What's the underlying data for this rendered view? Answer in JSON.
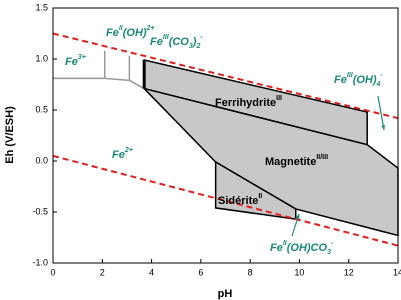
{
  "chart_data": {
    "type": "pourbaix",
    "xlabel": "pH",
    "ylabel": "Eh (V/ESH)",
    "xlim": [
      0,
      14
    ],
    "ylim": [
      -1.0,
      1.5
    ],
    "xticks": [
      0,
      2,
      4,
      6,
      8,
      10,
      12,
      14
    ],
    "yticks": [
      {
        "value": -1.0,
        "label": "-1.0"
      },
      {
        "value": -0.5,
        "label": "-0.5"
      },
      {
        "value": 0,
        "label": "0.0"
      },
      {
        "value": 0.5,
        "label": "0.5"
      },
      {
        "value": 1.0,
        "label": "1.0"
      },
      {
        "value": 1.5,
        "label": "1.5"
      }
    ],
    "region_color": "#c8c8c8",
    "regions": [
      {
        "x": [
          3.7,
          12.75,
          12.75,
          3.7
        ],
        "y": [
          0.99,
          0.48,
          0.16,
          0.71
        ]
      },
      {
        "x": [
          3.7,
          12.75,
          14,
          14,
          9.85,
          6.6
        ],
        "y": [
          0.71,
          0.16,
          -0.07,
          -0.73,
          -0.47,
          -0.01
        ]
      },
      {
        "x": [
          6.6,
          9.85,
          9.85,
          6.6
        ],
        "y": [
          -0.01,
          -0.47,
          -0.57,
          -0.46
        ]
      }
    ],
    "series": [
      {
        "x": [
          0,
          14
        ],
        "y": [
          1.25,
          0.42
        ],
        "color": "#e0201c",
        "dash": true
      },
      {
        "x": [
          0,
          14
        ],
        "y": [
          0.05,
          -0.83
        ],
        "color": "#e0201c",
        "dash": true
      },
      {
        "x": [
          0,
          2.1,
          3.1,
          3.7
        ],
        "y": [
          0.81,
          0.81,
          0.79,
          0.71
        ],
        "color": "#999999"
      },
      {
        "x": [
          2.1,
          2.1
        ],
        "y": [
          0.81,
          1.08
        ],
        "color": "#999999"
      },
      {
        "x": [
          3.1,
          3.1
        ],
        "y": [
          0.79,
          1.03
        ],
        "color": "#999999"
      },
      {
        "x": [
          3.7,
          3.7
        ],
        "y": [
          0.99,
          0.71
        ],
        "color": "#000000",
        "width": 3
      }
    ],
    "annotations": [
      {
        "kind": "ion",
        "parts": [
          {
            "text": "Fe"
          },
          {
            "text": "3+",
            "pos": "sup"
          }
        ]
      },
      {
        "kind": "ion",
        "parts": [
          {
            "text": "Fe"
          },
          {
            "text": "II",
            "pos": "sup"
          },
          {
            "text": "(OH)"
          },
          {
            "text": "2+",
            "pos": "sup"
          }
        ]
      },
      {
        "kind": "ion",
        "parts": [
          {
            "text": "Fe"
          },
          {
            "text": "III",
            "pos": "sup"
          },
          {
            "text": "(CO"
          },
          {
            "text": "3",
            "pos": "sub"
          },
          {
            "text": ")"
          },
          {
            "text": "2",
            "pos": "sub"
          },
          {
            "text": "-",
            "pos": "sup"
          }
        ]
      },
      {
        "kind": "ion",
        "parts": [
          {
            "text": "Fe"
          },
          {
            "text": "III",
            "pos": "sup"
          },
          {
            "text": "(OH)"
          },
          {
            "text": "4",
            "pos": "sub"
          },
          {
            "text": "-",
            "pos": "sup"
          }
        ]
      },
      {
        "kind": "solid",
        "parts": [
          {
            "text": "Ferrihydrite"
          },
          {
            "text": "III",
            "pos": "sup"
          }
        ]
      },
      {
        "kind": "solid",
        "parts": [
          {
            "text": "Magnetite"
          },
          {
            "text": "II/III",
            "pos": "sup"
          }
        ]
      },
      {
        "kind": "ion",
        "parts": [
          {
            "text": "Fe"
          },
          {
            "text": "2+",
            "pos": "sup"
          }
        ]
      },
      {
        "kind": "solid",
        "parts": [
          {
            "text": "Sidérite"
          },
          {
            "text": "II",
            "pos": "sup"
          }
        ]
      },
      {
        "kind": "ion",
        "parts": [
          {
            "text": "Fe"
          },
          {
            "text": "II",
            "pos": "sup"
          },
          {
            "text": "(OH)CO"
          },
          {
            "text": "3",
            "pos": "sub"
          },
          {
            "text": "-",
            "pos": "sup"
          }
        ]
      }
    ]
  }
}
